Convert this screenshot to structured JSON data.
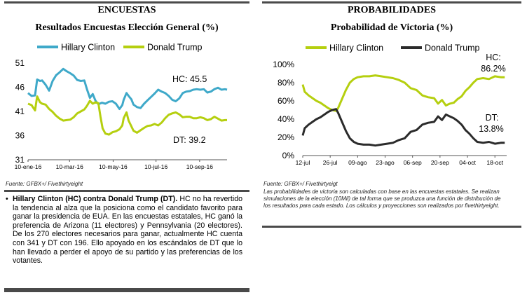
{
  "left": {
    "section_title": "ENCUESTAS",
    "source": "Fuente: GFBX+/ Fivethirtyeight",
    "bullet": {
      "bold": "Hillary Clinton (HC) contra Donald Trump (DT).",
      "text": " HC no ha revertido la tendencia al alza que la posiciona como el candidato favorito para ganar la presidencia de EUA. En las encuestas estatales, HC ganó la preferencia de Arizona (11 electores) y Pennsylvania (20 electores). De los 270 electores necesarios para ganar, actualmente HC cuenta con 341 y DT con 196. Ello apoyado en los escándalos de DT que lo han llevado a perder el apoyo de su partido y las preferencias de los votantes."
    }
  },
  "right": {
    "section_title": "PROBABILIDADES",
    "source": "Fuente: GFBX+/ Fivethirtyeigt",
    "note": "Las probabilidades de victoria son calculadas con base en las encuestas estatales. Se realizan simulaciones de la elección (10Mil) de tal forma que se produzca una función de distribución de los resultados para cada estado. Los cálculos y proyecciones son realizados por fivethirtyeight."
  },
  "chart_data": [
    {
      "type": "line",
      "title": "Resultados Encuestas Elección General (%)",
      "x_tick_labels": [
        "10-ene-16",
        "10-mar-16",
        "10-may-16",
        "10-jul-16",
        "10-sep-16"
      ],
      "x_tick_positions": [
        0,
        59,
        121,
        182,
        244
      ],
      "x_range": [
        0,
        283
      ],
      "ylim": [
        31,
        51
      ],
      "y_ticks": [
        31,
        36,
        41,
        46,
        51
      ],
      "legend_position": "top",
      "annotations": [
        "HC: 45.5",
        "DT: 39.2"
      ],
      "series": [
        {
          "name": "Hillary Clinton",
          "color": "#3fa9c9",
          "points": [
            [
              0,
              44.8
            ],
            [
              5,
              44.2
            ],
            [
              10,
              44.3
            ],
            [
              13,
              47.6
            ],
            [
              17,
              47.3
            ],
            [
              20,
              47.4
            ],
            [
              25,
              46.5
            ],
            [
              30,
              45.3
            ],
            [
              35,
              47.3
            ],
            [
              40,
              48.5
            ],
            [
              45,
              49.1
            ],
            [
              50,
              49.8
            ],
            [
              55,
              49.3
            ],
            [
              60,
              48.9
            ],
            [
              65,
              48.4
            ],
            [
              70,
              47.5
            ],
            [
              75,
              47.3
            ],
            [
              80,
              47.4
            ],
            [
              84,
              45.5
            ],
            [
              88,
              43.8
            ],
            [
              92,
              44.6
            ],
            [
              96,
              43.2
            ],
            [
              100,
              42.5
            ],
            [
              105,
              42.8
            ],
            [
              110,
              42.6
            ],
            [
              115,
              43.0
            ],
            [
              120,
              43.1
            ],
            [
              125,
              42.6
            ],
            [
              130,
              41.5
            ],
            [
              134,
              42.3
            ],
            [
              136,
              43.4
            ],
            [
              140,
              44.8
            ],
            [
              143,
              44.2
            ],
            [
              147,
              43.5
            ],
            [
              150,
              42.4
            ],
            [
              155,
              41.9
            ],
            [
              160,
              41.7
            ],
            [
              165,
              42.6
            ],
            [
              170,
              43.3
            ],
            [
              175,
              44.0
            ],
            [
              180,
              44.7
            ],
            [
              185,
              45.5
            ],
            [
              190,
              45.1
            ],
            [
              195,
              44.8
            ],
            [
              200,
              44.2
            ],
            [
              205,
              43.4
            ],
            [
              210,
              43.1
            ],
            [
              215,
              43.7
            ],
            [
              220,
              44.8
            ],
            [
              225,
              45.1
            ],
            [
              230,
              45.2
            ],
            [
              235,
              45.5
            ],
            [
              240,
              45.6
            ],
            [
              245,
              45.5
            ],
            [
              250,
              45.6
            ],
            [
              255,
              44.9
            ],
            [
              260,
              45.1
            ],
            [
              265,
              45.6
            ],
            [
              270,
              45.9
            ],
            [
              275,
              45.5
            ],
            [
              280,
              45.6
            ],
            [
              283,
              45.5
            ]
          ]
        },
        {
          "name": "Donald Trump",
          "color": "#b5cf0f",
          "points": [
            [
              0,
              42.6
            ],
            [
              5,
              42.3
            ],
            [
              10,
              41.2
            ],
            [
              13,
              44.1
            ],
            [
              17,
              42.9
            ],
            [
              20,
              42.6
            ],
            [
              25,
              42.4
            ],
            [
              30,
              41.5
            ],
            [
              35,
              40.9
            ],
            [
              40,
              40.1
            ],
            [
              45,
              39.5
            ],
            [
              50,
              39.1
            ],
            [
              55,
              39.2
            ],
            [
              60,
              39.3
            ],
            [
              65,
              39.8
            ],
            [
              70,
              40.6
            ],
            [
              75,
              41.0
            ],
            [
              80,
              41.4
            ],
            [
              84,
              42.2
            ],
            [
              88,
              43.2
            ],
            [
              92,
              42.6
            ],
            [
              96,
              42.9
            ],
            [
              100,
              42.7
            ],
            [
              103,
              39.9
            ],
            [
              106,
              37.5
            ],
            [
              110,
              36.4
            ],
            [
              115,
              36.2
            ],
            [
              120,
              36.7
            ],
            [
              125,
              36.9
            ],
            [
              130,
              37.3
            ],
            [
              134,
              38.1
            ],
            [
              136,
              39.6
            ],
            [
              140,
              40.8
            ],
            [
              143,
              39.1
            ],
            [
              147,
              37.9
            ],
            [
              150,
              37.0
            ],
            [
              155,
              36.6
            ],
            [
              160,
              37.1
            ],
            [
              165,
              37.6
            ],
            [
              170,
              38.0
            ],
            [
              175,
              38.1
            ],
            [
              180,
              38.4
            ],
            [
              185,
              38.1
            ],
            [
              190,
              38.7
            ],
            [
              195,
              39.6
            ],
            [
              200,
              40.3
            ],
            [
              205,
              40.6
            ],
            [
              210,
              40.8
            ],
            [
              215,
              40.4
            ],
            [
              220,
              39.8
            ],
            [
              225,
              39.9
            ],
            [
              230,
              39.9
            ],
            [
              235,
              39.6
            ],
            [
              240,
              39.6
            ],
            [
              245,
              39.8
            ],
            [
              250,
              39.6
            ],
            [
              255,
              39.2
            ],
            [
              260,
              39.4
            ],
            [
              265,
              39.9
            ],
            [
              270,
              39.5
            ],
            [
              275,
              39.1
            ],
            [
              280,
              39.2
            ],
            [
              283,
              39.2
            ]
          ]
        }
      ]
    },
    {
      "type": "line",
      "title": "Probabilidad de Victoria (%)",
      "x_tick_labels": [
        "12-jul",
        "26-jul",
        "09-ago",
        "23-ago",
        "06-sep",
        "20-sep",
        "04-oct",
        "18-oct"
      ],
      "x_tick_positions": [
        0,
        14,
        28,
        42,
        56,
        70,
        84,
        98
      ],
      "x_range": [
        0,
        104
      ],
      "ylim": [
        0,
        100
      ],
      "y_ticks": [
        0,
        20,
        40,
        60,
        80,
        100
      ],
      "y_tick_labels": [
        "0%",
        "20%",
        "40%",
        "60%",
        "80%",
        "100%"
      ],
      "legend_position": "top",
      "annotations": [
        "HC:",
        "86.2%",
        "DT:",
        "13.8%"
      ],
      "series": [
        {
          "name": "Hillary Clinton",
          "color": "#b5cf0f",
          "points": [
            [
              0,
              78
            ],
            [
              1,
              70
            ],
            [
              3,
              66
            ],
            [
              5,
              63
            ],
            [
              7,
              60
            ],
            [
              9,
              58
            ],
            [
              11,
              55
            ],
            [
              13,
              52
            ],
            [
              15,
              50
            ],
            [
              17,
              49
            ],
            [
              18,
              52
            ],
            [
              20,
              62
            ],
            [
              22,
              72
            ],
            [
              24,
              80
            ],
            [
              26,
              84
            ],
            [
              28,
              86
            ],
            [
              31,
              87
            ],
            [
              34,
              87
            ],
            [
              37,
              88
            ],
            [
              40,
              87
            ],
            [
              43,
              86
            ],
            [
              46,
              85
            ],
            [
              49,
              83
            ],
            [
              52,
              80
            ],
            [
              55,
              74
            ],
            [
              58,
              72
            ],
            [
              61,
              66
            ],
            [
              64,
              64
            ],
            [
              67,
              63
            ],
            [
              69,
              57
            ],
            [
              71,
              61
            ],
            [
              73,
              55
            ],
            [
              75,
              57
            ],
            [
              77,
              58
            ],
            [
              79,
              62
            ],
            [
              81,
              65
            ],
            [
              83,
              71
            ],
            [
              85,
              75
            ],
            [
              87,
              80
            ],
            [
              89,
              84
            ],
            [
              92,
              85
            ],
            [
              95,
              84
            ],
            [
              98,
              87
            ],
            [
              101,
              86
            ],
            [
              103,
              86
            ]
          ]
        },
        {
          "name": "Donald Trump",
          "color": "#2b2b2b",
          "points": [
            [
              0,
              22
            ],
            [
              1,
              30
            ],
            [
              3,
              34
            ],
            [
              5,
              37
            ],
            [
              7,
              40
            ],
            [
              9,
              42
            ],
            [
              11,
              45
            ],
            [
              13,
              48
            ],
            [
              15,
              50
            ],
            [
              17,
              51
            ],
            [
              18,
              47
            ],
            [
              20,
              37
            ],
            [
              22,
              27
            ],
            [
              24,
              19
            ],
            [
              26,
              15
            ],
            [
              28,
              13
            ],
            [
              31,
              12
            ],
            [
              34,
              12
            ],
            [
              37,
              11
            ],
            [
              40,
              12
            ],
            [
              43,
              13
            ],
            [
              46,
              14
            ],
            [
              49,
              17
            ],
            [
              52,
              19
            ],
            [
              55,
              26
            ],
            [
              58,
              28
            ],
            [
              61,
              34
            ],
            [
              64,
              36
            ],
            [
              67,
              37
            ],
            [
              69,
              43
            ],
            [
              71,
              39
            ],
            [
              73,
              45
            ],
            [
              75,
              43
            ],
            [
              77,
              41
            ],
            [
              79,
              38
            ],
            [
              81,
              34
            ],
            [
              83,
              28
            ],
            [
              85,
              24
            ],
            [
              87,
              19
            ],
            [
              89,
              15
            ],
            [
              92,
              14
            ],
            [
              95,
              15
            ],
            [
              98,
              13
            ],
            [
              101,
              14
            ],
            [
              103,
              14
            ]
          ]
        }
      ]
    }
  ]
}
